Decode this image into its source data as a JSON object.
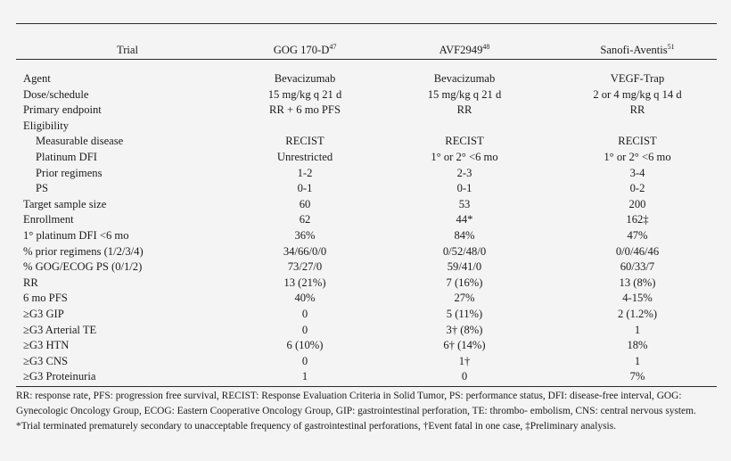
{
  "table": {
    "headers": [
      "Trial",
      "GOG 170-D",
      "AVF2949",
      "Sanofi-Aventis"
    ],
    "header_refs": [
      "",
      "47",
      "48",
      "51"
    ],
    "rows": [
      {
        "label": "Agent",
        "indent": false,
        "cells": [
          "Bevacizumab",
          "Bevacizumab",
          "VEGF-Trap"
        ]
      },
      {
        "label": "Dose/schedule",
        "indent": false,
        "cells": [
          "15 mg/kg q 21 d",
          "15 mg/kg q 21 d",
          "2 or 4 mg/kg q 14 d"
        ]
      },
      {
        "label": "Primary endpoint",
        "indent": false,
        "cells": [
          "RR + 6 mo PFS",
          "RR",
          "RR"
        ]
      },
      {
        "label": "Eligibility",
        "indent": false,
        "cells": [
          "",
          "",
          ""
        ]
      },
      {
        "label": "Measurable disease",
        "indent": true,
        "cells": [
          "RECIST",
          "RECIST",
          "RECIST"
        ]
      },
      {
        "label": "Platinum DFI",
        "indent": true,
        "cells": [
          "Unrestricted",
          "1° or 2° <6 mo",
          "1° or 2° <6 mo"
        ]
      },
      {
        "label": "Prior regimens",
        "indent": true,
        "cells": [
          "1-2",
          "2-3",
          "3-4"
        ]
      },
      {
        "label": "PS",
        "indent": true,
        "cells": [
          "0-1",
          "0-1",
          "0-2"
        ]
      },
      {
        "label": "Target sample size",
        "indent": false,
        "cells": [
          "60",
          "53",
          "200"
        ]
      },
      {
        "label": "Enrollment",
        "indent": false,
        "cells": [
          "62",
          "44*",
          "162‡"
        ]
      },
      {
        "label": "1° platinum DFI <6 mo",
        "indent": false,
        "cells": [
          "36%",
          "84%",
          "47%"
        ]
      },
      {
        "label": "% prior regimens (1/2/3/4)",
        "indent": false,
        "cells": [
          "34/66/0/0",
          "0/52/48/0",
          "0/0/46/46"
        ]
      },
      {
        "label": "% GOG/ECOG PS (0/1/2)",
        "indent": false,
        "cells": [
          "73/27/0",
          "59/41/0",
          "60/33/7"
        ]
      },
      {
        "label": "RR",
        "indent": false,
        "cells": [
          "13 (21%)",
          "7 (16%)",
          "13 (8%)"
        ]
      },
      {
        "label": "6 mo PFS",
        "indent": false,
        "cells": [
          "40%",
          "27%",
          "4-15%"
        ]
      },
      {
        "label": "≥G3 GIP",
        "indent": false,
        "cells": [
          "0",
          "5 (11%)",
          "2 (1.2%)"
        ]
      },
      {
        "label": "≥G3 Arterial TE",
        "indent": false,
        "cells": [
          "0",
          "3† (8%)",
          "1"
        ]
      },
      {
        "label": "≥G3 HTN",
        "indent": false,
        "cells": [
          "6 (10%)",
          "6† (14%)",
          "18%"
        ]
      },
      {
        "label": "≥G3 CNS",
        "indent": false,
        "cells": [
          "0",
          "1†",
          "1"
        ]
      },
      {
        "label": "≥G3 Proteinuria",
        "indent": false,
        "cells": [
          "1",
          "0",
          "7%"
        ]
      }
    ]
  },
  "footnotes": [
    "RR: response rate, PFS: progression free survival, RECIST: Response Evaluation Criteria in Solid Tumor, PS: performance status, DFI: disease-free interval, GOG: Gynecologic Oncology Group, ECOG: Eastern Cooperative Oncology Group, GIP: gastrointestinal perforation, TE: thrombo- embolism, CNS: central nervous system.",
    "*Trial terminated prematurely secondary to unacceptable frequency of gastrointestinal perforations, †Event fatal in one case, ‡Preliminary analysis."
  ],
  "colors": {
    "background": "#f4f4f4",
    "text": "#1b1b1b"
  }
}
